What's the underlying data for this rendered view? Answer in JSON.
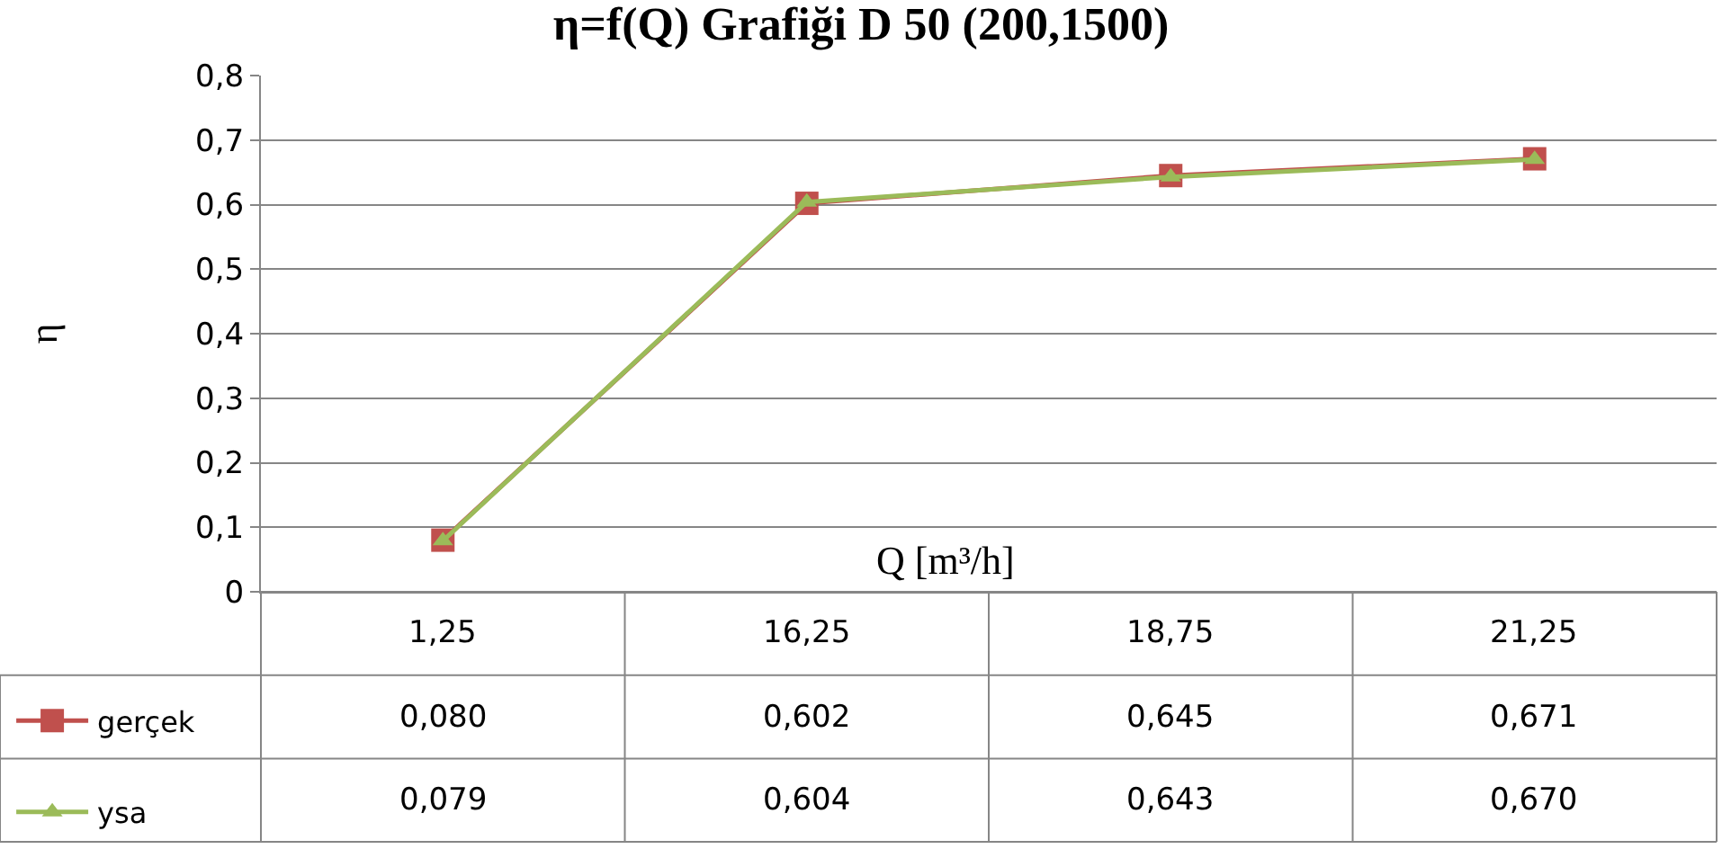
{
  "chart_data": {
    "type": "line",
    "title": "η=f(Q) Grafiği D 50 (200,1500)",
    "xlabel": "Q [m³/h]",
    "ylabel": "η",
    "categories": [
      "1,25",
      "16,25",
      "18,75",
      "21,25"
    ],
    "series": [
      {
        "name": "gerçek",
        "color": "#c0504d",
        "marker": "square",
        "values": [
          0.08,
          0.602,
          0.645,
          0.671
        ],
        "value_labels": [
          "0,080",
          "0,602",
          "0,645",
          "0,671"
        ]
      },
      {
        "name": "ysa",
        "color": "#9bbb59",
        "marker": "triangle",
        "values": [
          0.079,
          0.604,
          0.643,
          0.67
        ],
        "value_labels": [
          "0,079",
          "0,604",
          "0,643",
          "0,670"
        ]
      }
    ],
    "ylim": [
      0,
      0.8
    ],
    "yticks": [
      0,
      {
        "value": 0.1,
        "label": "0,1"
      },
      {
        "value": 0.2,
        "label": "0,2"
      },
      {
        "value": 0.3,
        "label": "0,3"
      },
      {
        "value": 0.4,
        "label": "0,4"
      },
      {
        "value": 0.5,
        "label": "0,5"
      },
      {
        "value": 0.6,
        "label": "0,6"
      },
      {
        "value": 0.7,
        "label": "0,7"
      },
      {
        "value": 0.8,
        "label": "0,8"
      }
    ],
    "grid": "y",
    "legend": "bottom left"
  }
}
